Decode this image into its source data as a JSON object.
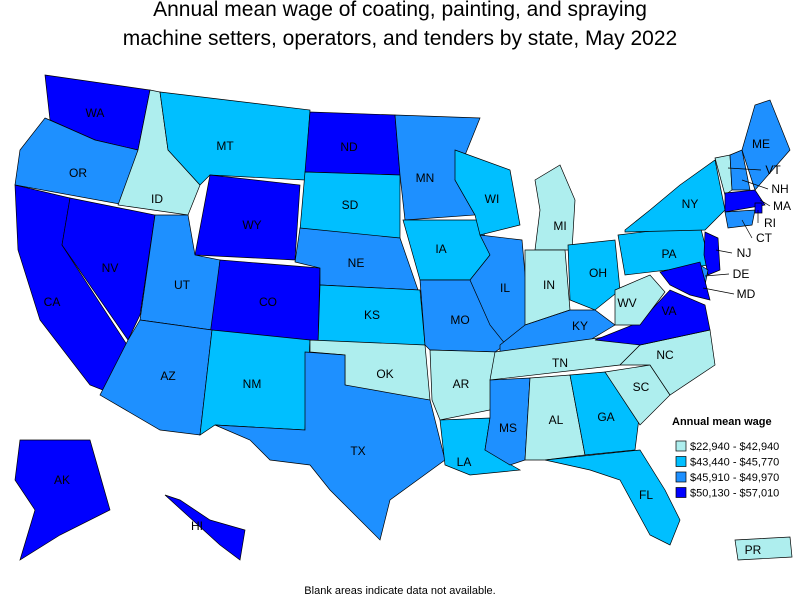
{
  "header": {
    "title_lines": [
      "Annual mean wage of coating, painting, and spraying",
      "machine setters, operators, and tenders by state, May 2022"
    ]
  },
  "legend": {
    "title": "Annual mean wage",
    "items": [
      {
        "label": "$22,940 - $42,940",
        "color": "#aeeeee"
      },
      {
        "label": "$43,440 - $45,770",
        "color": "#00bfff"
      },
      {
        "label": "$45,910 - $49,970",
        "color": "#1e90ff"
      },
      {
        "label": "$50,130 - $57,010",
        "color": "#0000ff"
      }
    ]
  },
  "states": [
    {
      "label": "WA",
      "bin": 3
    },
    {
      "label": "OR",
      "bin": 2
    },
    {
      "label": "CA",
      "bin": 3
    },
    {
      "label": "NV",
      "bin": 3
    },
    {
      "label": "ID",
      "bin": 0
    },
    {
      "label": "MT",
      "bin": 1
    },
    {
      "label": "WY",
      "bin": 3
    },
    {
      "label": "UT",
      "bin": 2
    },
    {
      "label": "CO",
      "bin": 3
    },
    {
      "label": "AZ",
      "bin": 2
    },
    {
      "label": "NM",
      "bin": 1
    },
    {
      "label": "ND",
      "bin": 3
    },
    {
      "label": "SD",
      "bin": 1
    },
    {
      "label": "NE",
      "bin": 2
    },
    {
      "label": "KS",
      "bin": 1
    },
    {
      "label": "OK",
      "bin": 0
    },
    {
      "label": "TX",
      "bin": 2
    },
    {
      "label": "MN",
      "bin": 2
    },
    {
      "label": "IA",
      "bin": 1
    },
    {
      "label": "MO",
      "bin": 2
    },
    {
      "label": "AR",
      "bin": 0
    },
    {
      "label": "LA",
      "bin": 1
    },
    {
      "label": "WI",
      "bin": 1
    },
    {
      "label": "IL",
      "bin": 2
    },
    {
      "label": "MI",
      "bin": 0
    },
    {
      "label": "IN",
      "bin": 0
    },
    {
      "label": "OH",
      "bin": 1
    },
    {
      "label": "KY",
      "bin": 2
    },
    {
      "label": "TN",
      "bin": 0
    },
    {
      "label": "MS",
      "bin": 2
    },
    {
      "label": "AL",
      "bin": 0
    },
    {
      "label": "GA",
      "bin": 1
    },
    {
      "label": "FL",
      "bin": 1
    },
    {
      "label": "SC",
      "bin": 0
    },
    {
      "label": "NC",
      "bin": 0
    },
    {
      "label": "VA",
      "bin": 3
    },
    {
      "label": "WV",
      "bin": 0
    },
    {
      "label": "PA",
      "bin": 1
    },
    {
      "label": "NY",
      "bin": 1
    },
    {
      "label": "VT",
      "bin": 0
    },
    {
      "label": "NH",
      "bin": 2
    },
    {
      "label": "ME",
      "bin": 2
    },
    {
      "label": "MA",
      "bin": 3
    },
    {
      "label": "RI",
      "bin": 3
    },
    {
      "label": "CT",
      "bin": 2
    },
    {
      "label": "NJ",
      "bin": 3
    },
    {
      "label": "DE",
      "bin": 2
    },
    {
      "label": "MD",
      "bin": 3
    },
    {
      "label": "AK",
      "bin": 3
    },
    {
      "label": "HI",
      "bin": 3
    },
    {
      "label": "PR",
      "bin": 0
    }
  ],
  "footer": {
    "note": "Blank areas indicate data not available."
  }
}
